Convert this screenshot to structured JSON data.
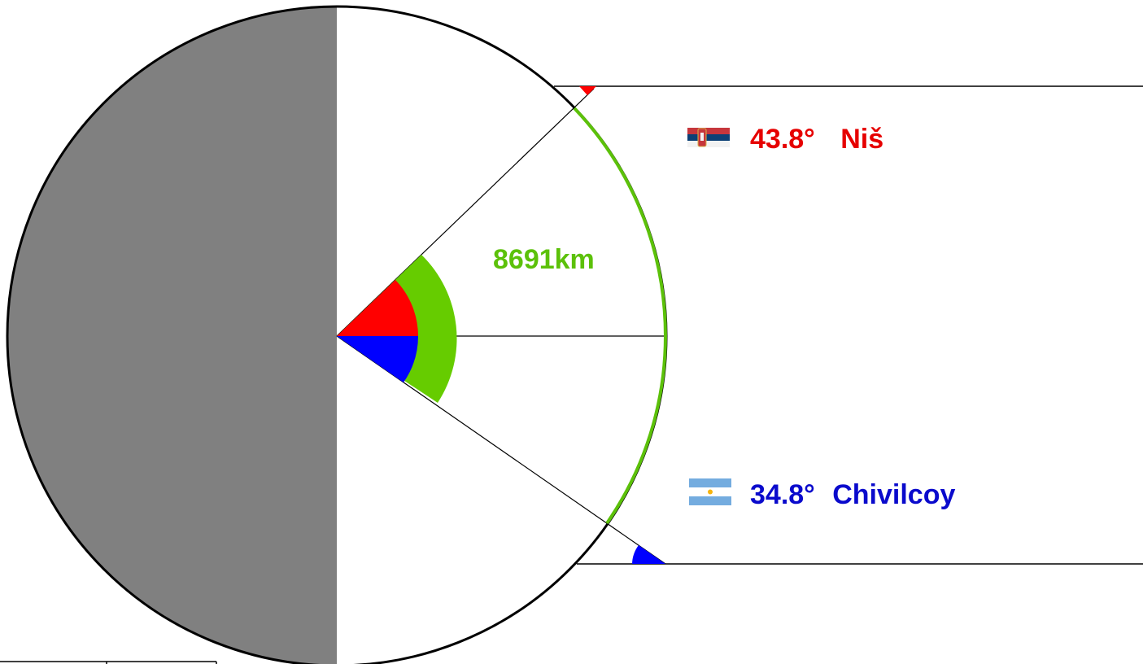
{
  "diagram": {
    "arc_distance": {
      "text": "8691km",
      "color": "#5cc10a"
    },
    "city_north": {
      "angle_text": "43.8°",
      "name": "Niš",
      "color": "#e60000",
      "flag_icon": "serbia-flag-icon"
    },
    "city_south": {
      "angle_text": "34.8°",
      "name": "Chivilcoy",
      "color": "#0a0acc",
      "flag_icon": "argentina-flag-icon"
    },
    "colors": {
      "earth_shadow": "#808080",
      "outline": "#000000",
      "arc": "#5cc10a",
      "north_angle": "#ff0000",
      "south_angle": "#0000ff"
    }
  }
}
